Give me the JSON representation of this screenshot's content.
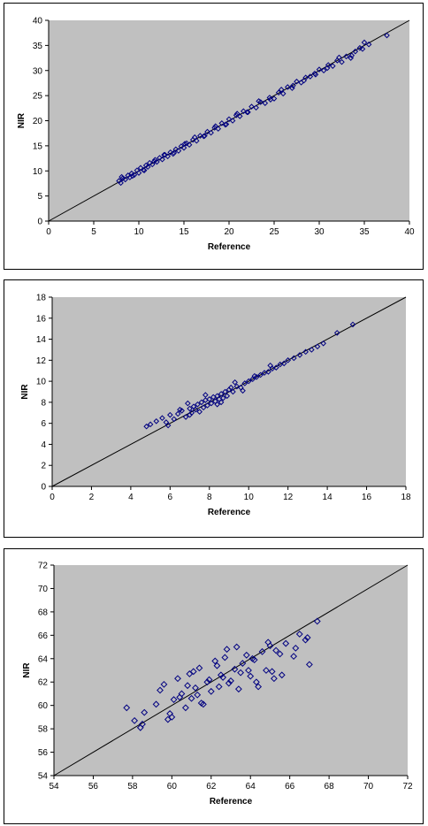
{
  "chart_data": [
    {
      "type": "scatter",
      "xlabel": "Reference",
      "ylabel": "NIR",
      "xlim": [
        0,
        40
      ],
      "ylim": [
        0,
        40
      ],
      "xticks": [
        0,
        5,
        10,
        15,
        20,
        25,
        30,
        35,
        40
      ],
      "yticks": [
        0,
        5,
        10,
        15,
        20,
        25,
        30,
        35,
        40
      ],
      "identity_line": [
        [
          0,
          0
        ],
        [
          40,
          40
        ]
      ],
      "grid": false,
      "plot_background": "#c0c0c0",
      "marker_color": "#000080",
      "marker": "diamond-open",
      "x": [
        7.8,
        8.0,
        8.2,
        8.5,
        8.8,
        9.0,
        9.2,
        9.5,
        9.8,
        10.0,
        10.2,
        10.5,
        10.8,
        11.0,
        11.2,
        11.5,
        11.8,
        12.0,
        12.3,
        12.6,
        12.9,
        13.2,
        13.5,
        13.8,
        14.1,
        14.4,
        14.7,
        15.0,
        15.3,
        15.6,
        16.0,
        16.4,
        16.8,
        17.2,
        17.6,
        18.0,
        18.4,
        18.8,
        19.2,
        19.6,
        20.0,
        20.4,
        20.8,
        21.2,
        21.6,
        22.0,
        22.5,
        23.0,
        23.5,
        24.0,
        24.5,
        25.0,
        25.5,
        26.0,
        26.5,
        27.0,
        27.5,
        28.0,
        28.5,
        29.0,
        29.5,
        30.0,
        30.5,
        31.0,
        31.5,
        32.0,
        32.5,
        33.0,
        33.5,
        34.0,
        34.5,
        35.0,
        35.5,
        37.5,
        8.1,
        9.3,
        10.6,
        11.7,
        12.8,
        13.9,
        15.1,
        16.2,
        17.3,
        18.5,
        19.7,
        20.9,
        22.1,
        23.3,
        24.6,
        25.8,
        27.1,
        28.3,
        29.6,
        30.9,
        32.2,
        33.6,
        34.8
      ],
      "y": [
        8.0,
        7.6,
        8.5,
        8.3,
        9.1,
        8.7,
        9.5,
        9.2,
        10.1,
        9.6,
        10.6,
        10.2,
        11.1,
        10.8,
        11.6,
        11.3,
        12.2,
        11.8,
        12.6,
        12.3,
        13.2,
        12.9,
        13.7,
        13.4,
        14.3,
        14.0,
        14.9,
        14.6,
        15.5,
        15.2,
        16.2,
        16.0,
        17.0,
        16.9,
        17.8,
        17.6,
        18.6,
        18.4,
        19.5,
        19.2,
        20.3,
        20.0,
        21.1,
        20.9,
        21.9,
        21.7,
        22.8,
        22.6,
        23.7,
        23.5,
        24.6,
        24.4,
        25.6,
        25.4,
        26.7,
        26.5,
        27.8,
        27.6,
        28.6,
        28.8,
        29.4,
        30.2,
        30.0,
        31.1,
        30.9,
        32.0,
        31.7,
        32.8,
        32.5,
        33.8,
        34.5,
        35.6,
        35.2,
        37.0,
        8.8,
        9.0,
        10.1,
        11.9,
        13.2,
        13.6,
        15.4,
        16.7,
        17.0,
        18.9,
        19.3,
        21.4,
        21.7,
        23.9,
        24.2,
        26.2,
        27.0,
        28.0,
        29.2,
        30.5,
        32.6,
        33.0,
        34.3
      ]
    },
    {
      "type": "scatter",
      "xlabel": "Reference",
      "ylabel": "NIR",
      "xlim": [
        0,
        18
      ],
      "ylim": [
        0,
        18
      ],
      "xticks": [
        0,
        2,
        4,
        6,
        8,
        10,
        12,
        14,
        16,
        18
      ],
      "yticks": [
        0,
        2,
        4,
        6,
        8,
        10,
        12,
        14,
        16,
        18
      ],
      "identity_line": [
        [
          0,
          0
        ],
        [
          18,
          18
        ]
      ],
      "grid": false,
      "plot_background": "#c0c0c0",
      "marker_color": "#000080",
      "marker": "diamond-open",
      "x": [
        4.8,
        5.0,
        5.3,
        5.6,
        5.8,
        6.0,
        6.2,
        6.4,
        6.6,
        6.8,
        7.0,
        7.1,
        7.2,
        7.3,
        7.4,
        7.5,
        7.6,
        7.7,
        7.8,
        7.9,
        8.0,
        8.1,
        8.2,
        8.3,
        8.4,
        8.5,
        8.6,
        8.7,
        8.8,
        8.9,
        9.0,
        9.2,
        9.4,
        9.6,
        9.8,
        10.0,
        10.2,
        10.4,
        10.6,
        10.8,
        11.0,
        11.2,
        11.4,
        11.6,
        11.8,
        12.0,
        12.3,
        12.6,
        12.9,
        13.2,
        13.5,
        13.8,
        14.5,
        15.3,
        6.5,
        7.0,
        7.8,
        8.4,
        9.1,
        9.7,
        10.3,
        11.1,
        5.9,
        6.9,
        8.6,
        9.3
      ],
      "y": [
        5.7,
        5.9,
        6.2,
        6.5,
        6.1,
        6.8,
        6.4,
        6.9,
        7.2,
        6.6,
        7.4,
        7.0,
        7.6,
        7.3,
        7.8,
        7.1,
        8.0,
        7.5,
        8.2,
        7.7,
        8.3,
        7.9,
        8.5,
        8.1,
        8.6,
        8.3,
        8.8,
        8.4,
        9.0,
        8.6,
        9.2,
        9.0,
        9.5,
        9.4,
        9.8,
        10.0,
        10.2,
        10.4,
        10.6,
        10.8,
        10.9,
        11.2,
        11.3,
        11.6,
        11.7,
        12.0,
        12.2,
        12.5,
        12.8,
        13.0,
        13.3,
        13.6,
        14.6,
        15.4,
        7.3,
        6.8,
        8.7,
        7.8,
        9.4,
        9.1,
        10.5,
        11.5,
        5.8,
        7.9,
        8.0,
        9.9
      ]
    },
    {
      "type": "scatter",
      "xlabel": "Reference",
      "ylabel": "NIR",
      "xlim": [
        54,
        72
      ],
      "ylim": [
        54,
        72
      ],
      "xticks": [
        54,
        56,
        58,
        60,
        62,
        64,
        66,
        68,
        70,
        72
      ],
      "yticks": [
        54,
        56,
        58,
        60,
        62,
        64,
        66,
        68,
        70,
        72
      ],
      "identity_line": [
        [
          54,
          54
        ],
        [
          72,
          72
        ]
      ],
      "grid": false,
      "plot_background": "#c0c0c0",
      "marker_color": "#000080",
      "marker": "diamond-open",
      "x": [
        57.7,
        58.1,
        58.4,
        58.6,
        59.2,
        59.6,
        59.9,
        60.1,
        60.3,
        60.5,
        60.7,
        60.9,
        61.0,
        61.2,
        61.4,
        61.6,
        61.8,
        62.0,
        62.2,
        62.4,
        62.6,
        62.8,
        63.0,
        63.2,
        63.4,
        63.6,
        63.8,
        64.0,
        64.2,
        64.4,
        64.6,
        64.8,
        65.0,
        65.2,
        65.5,
        65.8,
        66.2,
        66.5,
        66.8,
        67.0,
        67.4,
        59.8,
        60.4,
        61.1,
        61.5,
        62.3,
        62.9,
        63.5,
        64.1,
        64.9,
        65.6,
        66.3,
        60.0,
        60.8,
        61.9,
        62.7,
        63.9,
        65.3,
        58.5,
        59.4,
        61.3,
        62.5,
        63.3,
        64.3,
        65.1,
        66.9
      ],
      "y": [
        59.8,
        58.7,
        58.1,
        59.4,
        60.1,
        61.8,
        59.3,
        60.5,
        62.3,
        61.0,
        59.8,
        62.7,
        60.6,
        61.5,
        63.2,
        60.1,
        62.0,
        61.2,
        63.8,
        61.6,
        62.4,
        64.8,
        62.1,
        63.1,
        61.4,
        63.6,
        64.3,
        62.5,
        63.9,
        61.6,
        64.6,
        63.0,
        65.1,
        62.3,
        64.4,
        65.3,
        64.2,
        66.1,
        65.6,
        63.5,
        67.2,
        58.8,
        60.7,
        62.9,
        60.2,
        63.4,
        61.9,
        62.8,
        64.0,
        65.4,
        62.6,
        64.9,
        59.0,
        61.7,
        62.2,
        64.1,
        63.0,
        64.7,
        58.4,
        61.3,
        60.9,
        62.6,
        65.0,
        62.0,
        62.9,
        65.8
      ]
    }
  ]
}
